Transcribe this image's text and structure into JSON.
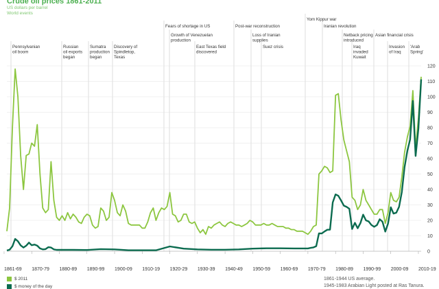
{
  "header": {
    "title": "Crude oil prices 1861-2011",
    "subtitle1": "US dollars per barrel",
    "subtitle2": "World events"
  },
  "legend": {
    "items": [
      {
        "label": "$ 2011",
        "color": "#8cc63f"
      },
      {
        "label": "$ money of the day",
        "color": "#0b6b4f"
      }
    ]
  },
  "notes": {
    "line1": "1861-1944 US average.",
    "line2": "1945-1983 Arabian Light posted at Ras Tanura."
  },
  "events": [
    {
      "lines": [
        "Pennsylvanian",
        "oil boom"
      ]
    },
    {
      "lines": [
        "Russian",
        "oil exports",
        "began"
      ]
    },
    {
      "lines": [
        "Sumatra",
        "production",
        "began"
      ]
    },
    {
      "lines": [
        "Discovery of",
        "Spindletop,",
        "Texas"
      ]
    },
    {
      "lines": [
        "Fears of shortage in US"
      ]
    },
    {
      "lines": [
        "Growth of Venezuelan",
        "production"
      ]
    },
    {
      "lines": [
        "East Texas field",
        "discovered"
      ]
    },
    {
      "lines": [
        "Post-war reconstruction"
      ]
    },
    {
      "lines": [
        "Loss of Iranian",
        "supplies"
      ]
    },
    {
      "lines": [
        "Suez crisis"
      ]
    },
    {
      "lines": [
        "Yom Kippur war"
      ]
    },
    {
      "lines": [
        "Iranian revolution"
      ]
    },
    {
      "lines": [
        "Netback pricing",
        "introduced"
      ]
    },
    {
      "lines": [
        "Iraq",
        "invaded",
        "Kuwait"
      ]
    },
    {
      "lines": [
        "Asian financial crisis"
      ]
    },
    {
      "lines": [
        "Invasion",
        "of Iraq"
      ]
    },
    {
      "lines": [
        "'Arab",
        "Spring'"
      ]
    }
  ],
  "chart_data": {
    "type": "line",
    "title": "Crude oil prices 1861-2011",
    "ylabel": "US dollars per barrel",
    "ylim": [
      0,
      120
    ],
    "xlim": [
      1861,
      2011
    ],
    "yticks": [
      0,
      10,
      20,
      30,
      40,
      50,
      60,
      70,
      80,
      90,
      100,
      110,
      120
    ],
    "xtick_labels": [
      "1861-69",
      "1870-79",
      "1880-89",
      "1890-99",
      "1900-09",
      "1910-19",
      "1920-29",
      "1930-39",
      "1940-49",
      "1950-59",
      "1960-69",
      "1970-79",
      "1980-89",
      "1990-99",
      "2000-09",
      "2010-19"
    ],
    "grid": true,
    "series": [
      {
        "name": "$ 2011",
        "color": "#8cc63f",
        "x": [
          1861,
          1862,
          1863,
          1864,
          1865,
          1866,
          1867,
          1868,
          1869,
          1870,
          1871,
          1872,
          1873,
          1874,
          1875,
          1876,
          1877,
          1878,
          1879,
          1880,
          1881,
          1882,
          1883,
          1884,
          1885,
          1886,
          1887,
          1888,
          1889,
          1890,
          1891,
          1892,
          1893,
          1894,
          1895,
          1896,
          1897,
          1898,
          1899,
          1900,
          1901,
          1902,
          1903,
          1904,
          1905,
          1906,
          1907,
          1908,
          1909,
          1910,
          1911,
          1912,
          1913,
          1914,
          1915,
          1916,
          1917,
          1918,
          1919,
          1920,
          1921,
          1922,
          1923,
          1924,
          1925,
          1926,
          1927,
          1928,
          1929,
          1930,
          1931,
          1932,
          1933,
          1934,
          1935,
          1936,
          1937,
          1938,
          1939,
          1940,
          1941,
          1942,
          1943,
          1944,
          1945,
          1946,
          1947,
          1948,
          1949,
          1950,
          1951,
          1952,
          1953,
          1954,
          1955,
          1956,
          1957,
          1958,
          1959,
          1960,
          1961,
          1962,
          1963,
          1964,
          1965,
          1966,
          1967,
          1968,
          1969,
          1970,
          1971,
          1972,
          1973,
          1974,
          1975,
          1976,
          1977,
          1978,
          1979,
          1980,
          1981,
          1982,
          1983,
          1984,
          1985,
          1986,
          1987,
          1988,
          1989,
          1990,
          1991,
          1992,
          1993,
          1994,
          1995,
          1996,
          1997,
          1998,
          1999,
          2000,
          2001,
          2002,
          2003,
          2004,
          2005,
          2006,
          2007,
          2008,
          2009,
          2010,
          2011
        ],
        "values": [
          13,
          28,
          80,
          118,
          100,
          62,
          40,
          62,
          63,
          70,
          68,
          82,
          50,
          28,
          25,
          27,
          58,
          33,
          22,
          20,
          23,
          20,
          25,
          21,
          24,
          22,
          19,
          18,
          22,
          24,
          23,
          17,
          15,
          16,
          28,
          26,
          20,
          22,
          38,
          33,
          25,
          23,
          30,
          26,
          18,
          17,
          17,
          17,
          17,
          15,
          15,
          19,
          25,
          28,
          20,
          25,
          28,
          27,
          29,
          38,
          24,
          23,
          19,
          20,
          24,
          24,
          19,
          18,
          19,
          15,
          12,
          14,
          11,
          16,
          15,
          17,
          18,
          19,
          17,
          16,
          18,
          19,
          18,
          17,
          17,
          16,
          17,
          18,
          20,
          19,
          17,
          17,
          17,
          18,
          17,
          17,
          18,
          17,
          16,
          16,
          16,
          15,
          15,
          14,
          14,
          13,
          13,
          13,
          12,
          11,
          13,
          16,
          17,
          50,
          52,
          55,
          54,
          51,
          52,
          101,
          102,
          85,
          72,
          65,
          58,
          35,
          33,
          27,
          30,
          40,
          33,
          30,
          27,
          24,
          24,
          27,
          27,
          18,
          25,
          38,
          33,
          32,
          35,
          48,
          64,
          74,
          81,
          104,
          67,
          86,
          113
        ]
      },
      {
        "name": "$ money of the day",
        "color": "#0b6b4f",
        "x": [
          1861,
          1862,
          1863,
          1864,
          1865,
          1866,
          1867,
          1868,
          1869,
          1870,
          1871,
          1872,
          1873,
          1874,
          1875,
          1876,
          1877,
          1878,
          1879,
          1880,
          1885,
          1890,
          1895,
          1900,
          1905,
          1910,
          1915,
          1920,
          1925,
          1930,
          1935,
          1940,
          1945,
          1950,
          1955,
          1960,
          1965,
          1970,
          1971,
          1972,
          1973,
          1974,
          1975,
          1976,
          1977,
          1978,
          1979,
          1980,
          1981,
          1982,
          1983,
          1984,
          1985,
          1986,
          1987,
          1988,
          1989,
          1990,
          1991,
          1992,
          1993,
          1994,
          1995,
          1996,
          1997,
          1998,
          1999,
          2000,
          2001,
          2002,
          2003,
          2004,
          2005,
          2006,
          2007,
          2008,
          2009,
          2010,
          2011
        ],
        "values": [
          0.5,
          1,
          3.2,
          8,
          6.5,
          3.8,
          2.4,
          3.6,
          5.6,
          3.9,
          4.3,
          3.6,
          1.8,
          1.2,
          1.4,
          2.6,
          2.4,
          1.2,
          0.9,
          0.9,
          0.9,
          0.8,
          1.4,
          1.2,
          0.6,
          0.6,
          0.6,
          3.1,
          1.7,
          1.2,
          1,
          1.0,
          1.2,
          1.7,
          1.9,
          1.9,
          1.8,
          1.8,
          2.2,
          2.5,
          3.3,
          11.6,
          11.5,
          12.8,
          13.9,
          14.0,
          31.6,
          36.8,
          35.9,
          32.9,
          29.5,
          28.7,
          27.5,
          14.4,
          18.4,
          14.9,
          18.2,
          23.7,
          20.0,
          19.3,
          17.0,
          15.8,
          17.0,
          20.7,
          19.1,
          12.7,
          17.9,
          28.5,
          24.4,
          25.0,
          28.8,
          38.3,
          54.5,
          65.1,
          72.4,
          97.3,
          61.7,
          79.5,
          111.3
        ]
      }
    ]
  }
}
